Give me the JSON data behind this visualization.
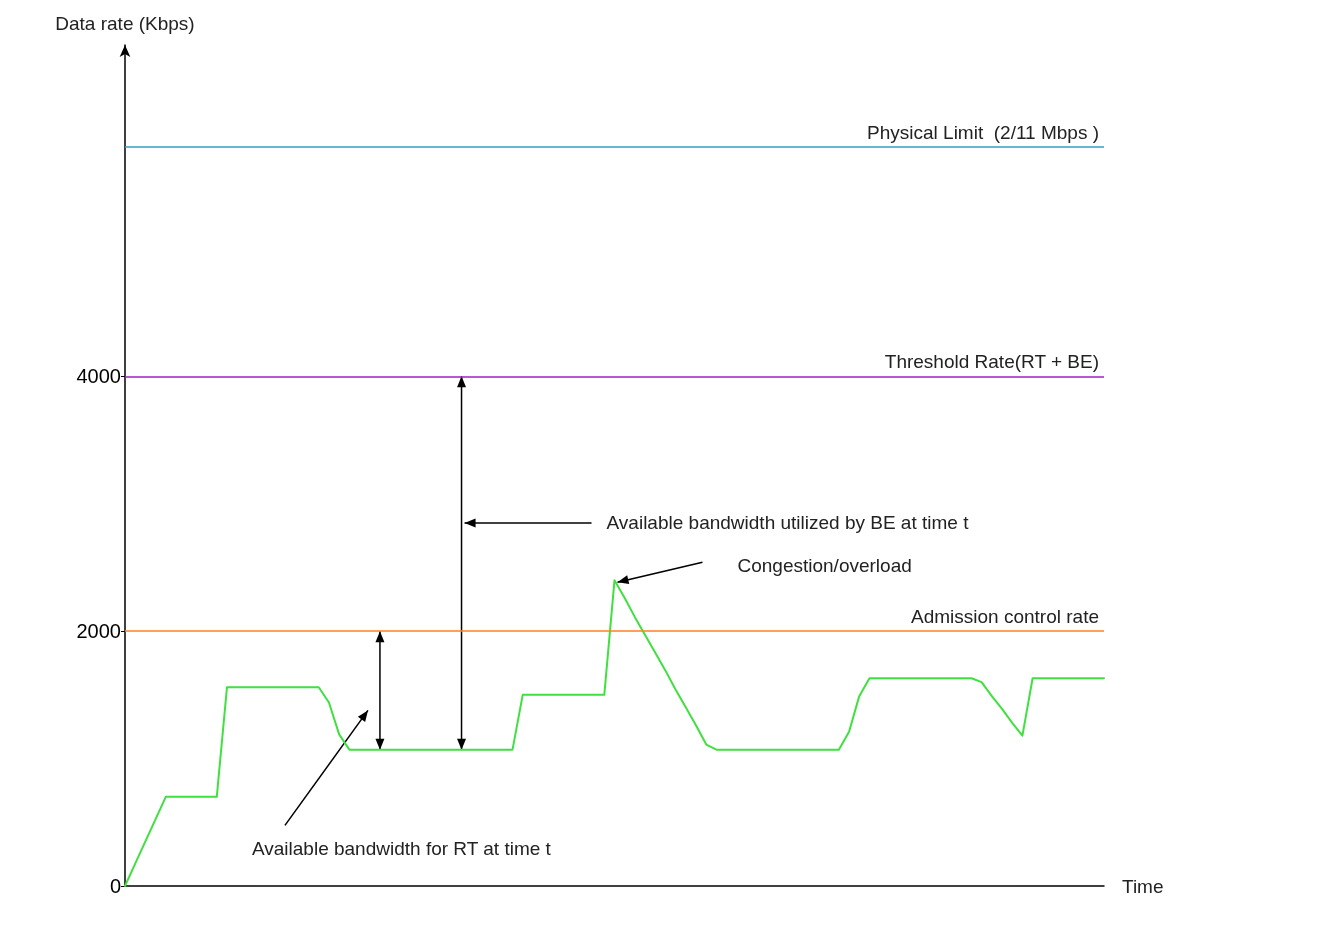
{
  "chart_data": {
    "type": "line",
    "xlabel": "Time",
    "ylabel": "Data rate (Kbps)",
    "categories": [
      null,
      null,
      null,
      null,
      null,
      null,
      null,
      null,
      null,
      null,
      null,
      null,
      null,
      null,
      null,
      null,
      null,
      null,
      null,
      null,
      null,
      null,
      null,
      null,
      null,
      null,
      null,
      null,
      null,
      null,
      null,
      null,
      null,
      null,
      null,
      null,
      null,
      null,
      null,
      null,
      null,
      null,
      null,
      null,
      null,
      null,
      null,
      null,
      null,
      null,
      null,
      null,
      null,
      null,
      null,
      null,
      null,
      null,
      null,
      null,
      null,
      null,
      null,
      null,
      null,
      null,
      null,
      null,
      null,
      null,
      null,
      null,
      null,
      null,
      null,
      null,
      null,
      null,
      null,
      null,
      null,
      null,
      null,
      null,
      null,
      null,
      null,
      null,
      null,
      null,
      null,
      null,
      null,
      null,
      null,
      null,
      null
    ],
    "ylim": [
      0,
      6600
    ],
    "yticks": [
      0,
      2000,
      4000
    ],
    "tick_labels": "y",
    "grid": false,
    "marker": "none",
    "line_style": "solid",
    "series": [
      {
        "color": "#40e040",
        "values": [
          0,
          175,
          350,
          525,
          700,
          700,
          700,
          700,
          700,
          700,
          1560,
          1560,
          1560,
          1560,
          1560,
          1560,
          1560,
          1560,
          1560,
          1560,
          1440,
          1190,
          1070,
          1070,
          1070,
          1070,
          1070,
          1070,
          1070,
          1070,
          1070,
          1070,
          1070,
          1070,
          1070,
          1070,
          1070,
          1070,
          1070,
          1500,
          1500,
          1500,
          1500,
          1500,
          1500,
          1500,
          1500,
          1500,
          2400,
          2260,
          2110,
          1970,
          1830,
          1690,
          1540,
          1400,
          1260,
          1110,
          1070,
          1070,
          1070,
          1070,
          1070,
          1070,
          1070,
          1070,
          1070,
          1070,
          1070,
          1070,
          1070,
          1210,
          1490,
          1630,
          1630,
          1630,
          1630,
          1630,
          1630,
          1630,
          1630,
          1630,
          1630,
          1630,
          1600,
          1490,
          1390,
          1280,
          1180,
          1630,
          1630,
          1630,
          1630,
          1630,
          1630,
          1630,
          1630
        ]
      }
    ],
    "ref_lines": [
      {
        "axis": "y",
        "value": 5800,
        "label": "Physical Limit  (2/11 Mbps )",
        "color": "#30a0c0"
      },
      {
        "axis": "y",
        "value": 4000,
        "label": "Threshold Rate(RT + BE)",
        "color": "#a020c0"
      },
      {
        "axis": "y",
        "value": 2000,
        "label": "Admission control rate",
        "color": "#ff8020"
      }
    ],
    "annotations": [
      "Available bandwidth utilized by BE at time t",
      "Congestion/overload",
      "Available bandwidth for RT at time t"
    ]
  }
}
